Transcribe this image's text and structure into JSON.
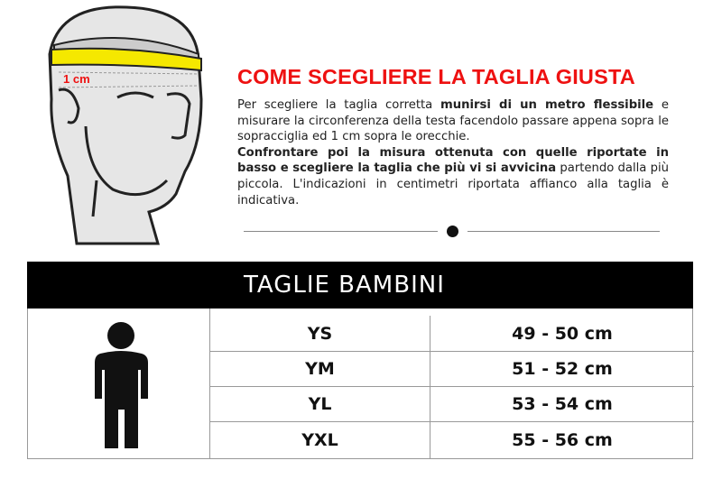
{
  "illustration": {
    "label": "1 cm",
    "colors": {
      "tape": "#f5e800",
      "skin": "#e6e6e6",
      "label": "#ee1111"
    }
  },
  "title": "COME SCEGLIERE LA TAGLIA GIUSTA",
  "description": {
    "p1": "Per scegliere la taglia corretta ",
    "p1_bold": "munirsi di un metro flessibile",
    "p2": " e misurare la circonferenza della testa facendolo passare appena sopra le sopracciglia ed 1 cm sopra le orecchie.",
    "p3_bold": "Confrontare poi la misura ottenuta con quelle riportate in basso e scegliere la taglia che più vi si avvicina",
    "p4": " partendo dalla più piccola. L'indicazioni in centimetri riportata affianco alla taglia è indicativa."
  },
  "table": {
    "header": "TAGLIE BAMBINI",
    "icon": "child-figure-icon",
    "rows": [
      {
        "size": "YS",
        "measure": "49 - 50 cm"
      },
      {
        "size": "YM",
        "measure": "51 - 52 cm"
      },
      {
        "size": "YL",
        "measure": "53 - 54 cm"
      },
      {
        "size": "YXL",
        "measure": "55 - 56 cm"
      }
    ]
  }
}
